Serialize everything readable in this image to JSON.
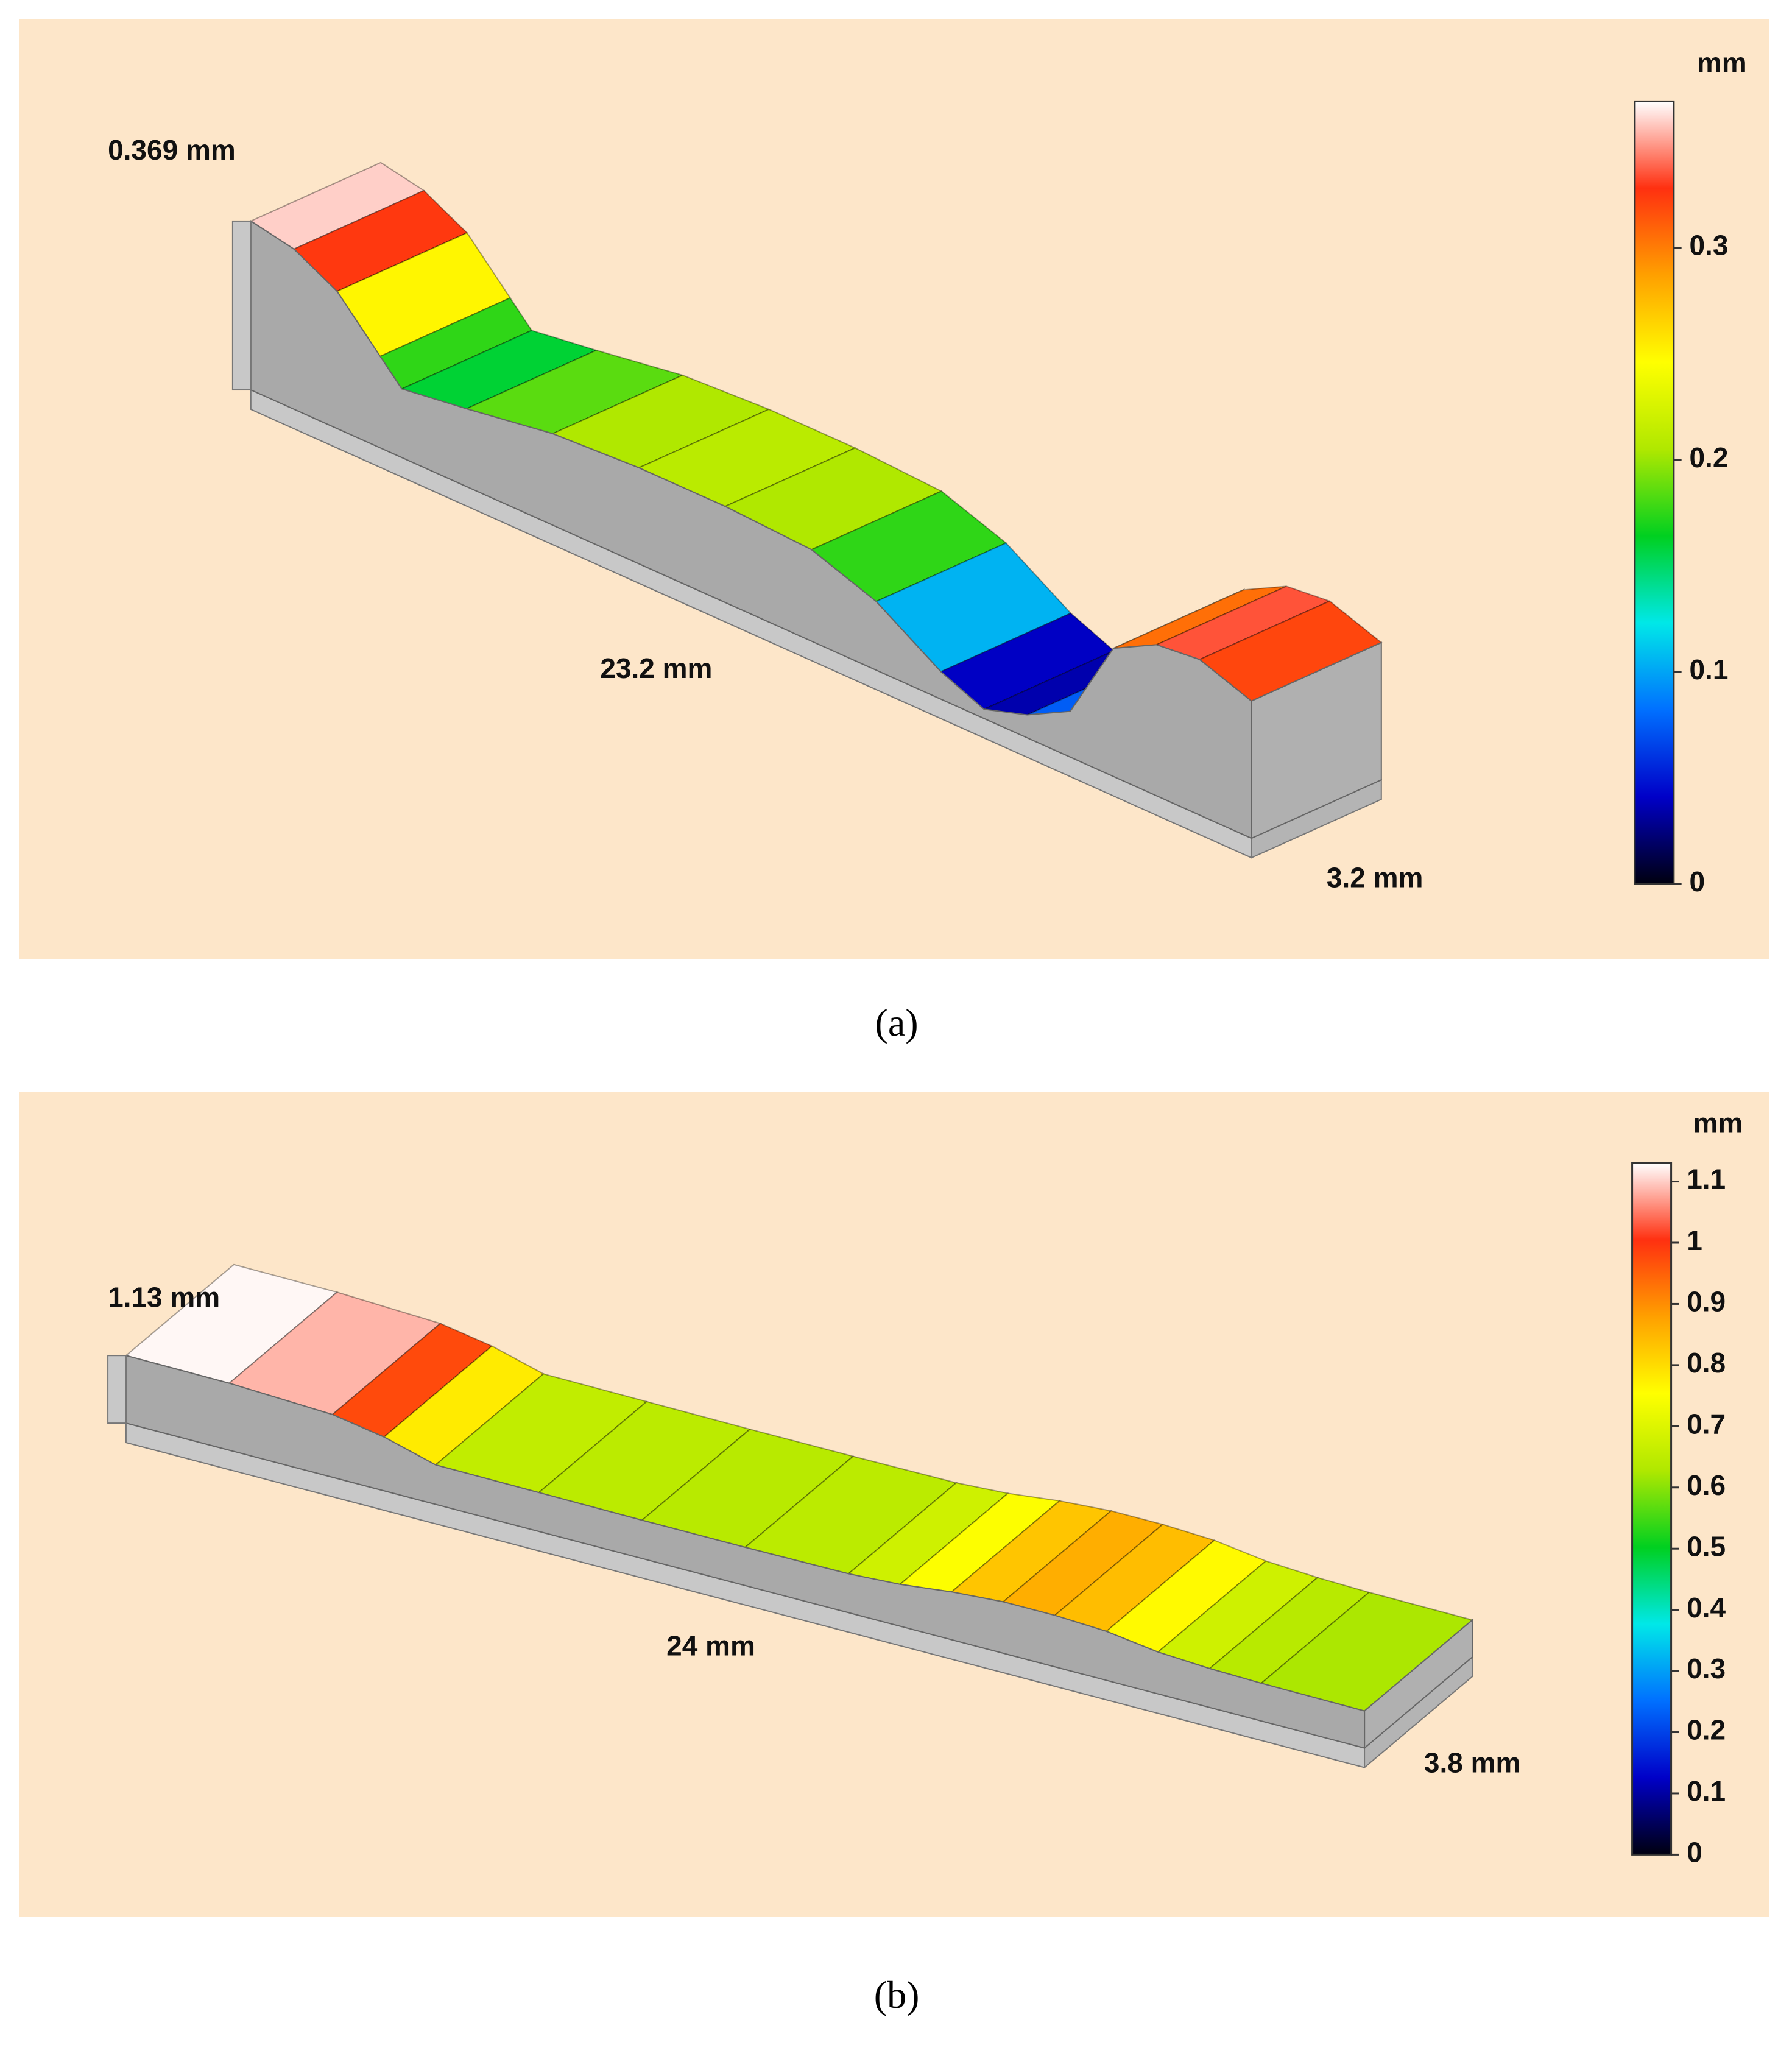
{
  "chart_data": [
    {
      "type": "surface-profile",
      "caption": "(a)",
      "colorbar_label": "mm",
      "height_label": "0.369 mm",
      "length_label": "23.2 mm",
      "width_label": "3.2 mm",
      "xlim": [
        0,
        23.2
      ],
      "clim": [
        0,
        0.369
      ],
      "cticks": [
        0,
        0.1,
        0.2,
        0.3
      ],
      "colormap": [
        "#000010",
        "#0000c8",
        "#0070ff",
        "#00e8e8",
        "#00d020",
        "#b0e800",
        "#ffff00",
        "#ffa000",
        "#ff3010",
        "#ffffff"
      ],
      "x": [
        0,
        1,
        2,
        3,
        3.5,
        5,
        7,
        9,
        11,
        13,
        14.5,
        16,
        17,
        18,
        19,
        20,
        21,
        22,
        23.2
      ],
      "values": [
        0.369,
        0.35,
        0.3,
        0.2,
        0.15,
        0.17,
        0.2,
        0.21,
        0.21,
        0.2,
        0.15,
        0.06,
        0.02,
        0.05,
        0.1,
        0.28,
        0.33,
        0.34,
        0.3
      ]
    },
    {
      "type": "surface-profile",
      "caption": "(b)",
      "colorbar_label": "mm",
      "height_label": "1.13 mm",
      "length_label": "24 mm",
      "width_label": "3.8 mm",
      "xlim": [
        0,
        24
      ],
      "clim": [
        0,
        1.13
      ],
      "cticks": [
        0,
        0.1,
        0.2,
        0.3,
        0.4,
        0.5,
        0.6,
        0.7,
        0.8,
        0.9,
        1,
        1.1
      ],
      "colormap": [
        "#000010",
        "#0000c8",
        "#0070ff",
        "#00e8e8",
        "#00d020",
        "#b0e800",
        "#ffff00",
        "#ffa000",
        "#ff3010",
        "#ffffff"
      ],
      "x": [
        0,
        2,
        4,
        5,
        6,
        8,
        10,
        12,
        14,
        15,
        16,
        17,
        18,
        19,
        20,
        21,
        22,
        24
      ],
      "values": [
        1.13,
        1.12,
        1.05,
        0.9,
        0.66,
        0.65,
        0.64,
        0.64,
        0.65,
        0.7,
        0.8,
        0.86,
        0.86,
        0.82,
        0.7,
        0.65,
        0.63,
        0.62
      ]
    }
  ]
}
